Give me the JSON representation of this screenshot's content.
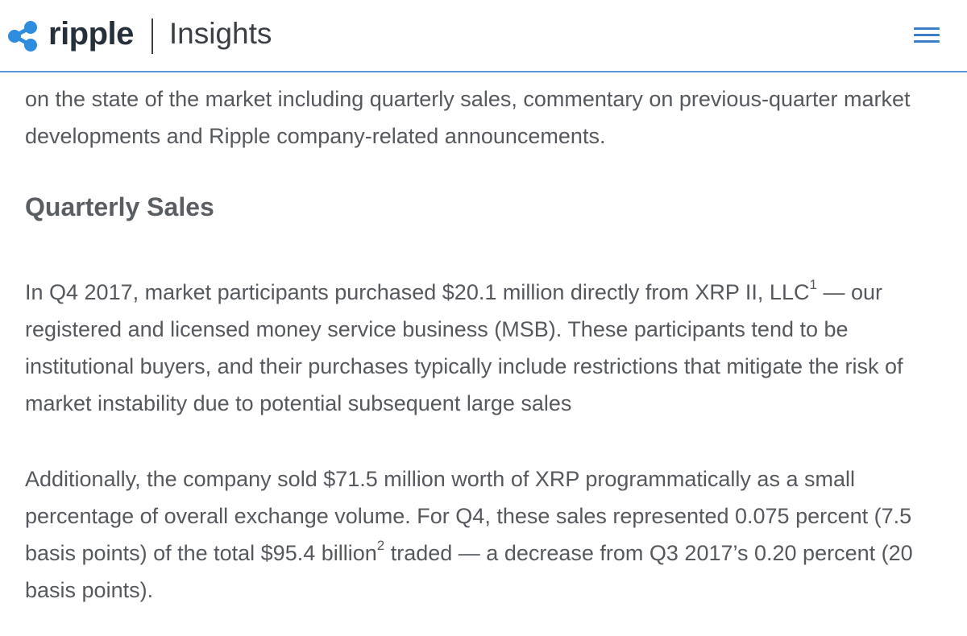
{
  "header": {
    "brand": "ripple",
    "section": "Insights",
    "accent_color": "#3c7ec8",
    "logo_icon": "ripple-logo-icon",
    "menu_icon": "hamburger-menu-icon"
  },
  "article": {
    "intro": "on the state of the market including quarterly sales, commentary on previous-quarter market developments and Ripple company-related announcements.",
    "heading": "Quarterly Sales",
    "p1_before_sup": "In Q4 2017, market participants purchased $20.1 million directly from XRP II, LLC",
    "p1_sup": "1",
    "p1_after_sup": " — our registered and licensed money service business (MSB). These participants tend to be institutional buyers, and their purchases typically include restrictions that mitigate the risk of market instability due to potential subsequent large sales",
    "p2_before_sup": "Additionally, the company sold $71.5 million worth of XRP programmatically as a small percentage of overall exchange volume. For Q4, these sales represented 0.075 percent (7.5 basis points) of the total $95.4 billion",
    "p2_sup": "2",
    "p2_after_sup": " traded — a decrease from Q3 2017’s 0.20 percent (20 basis points)."
  }
}
